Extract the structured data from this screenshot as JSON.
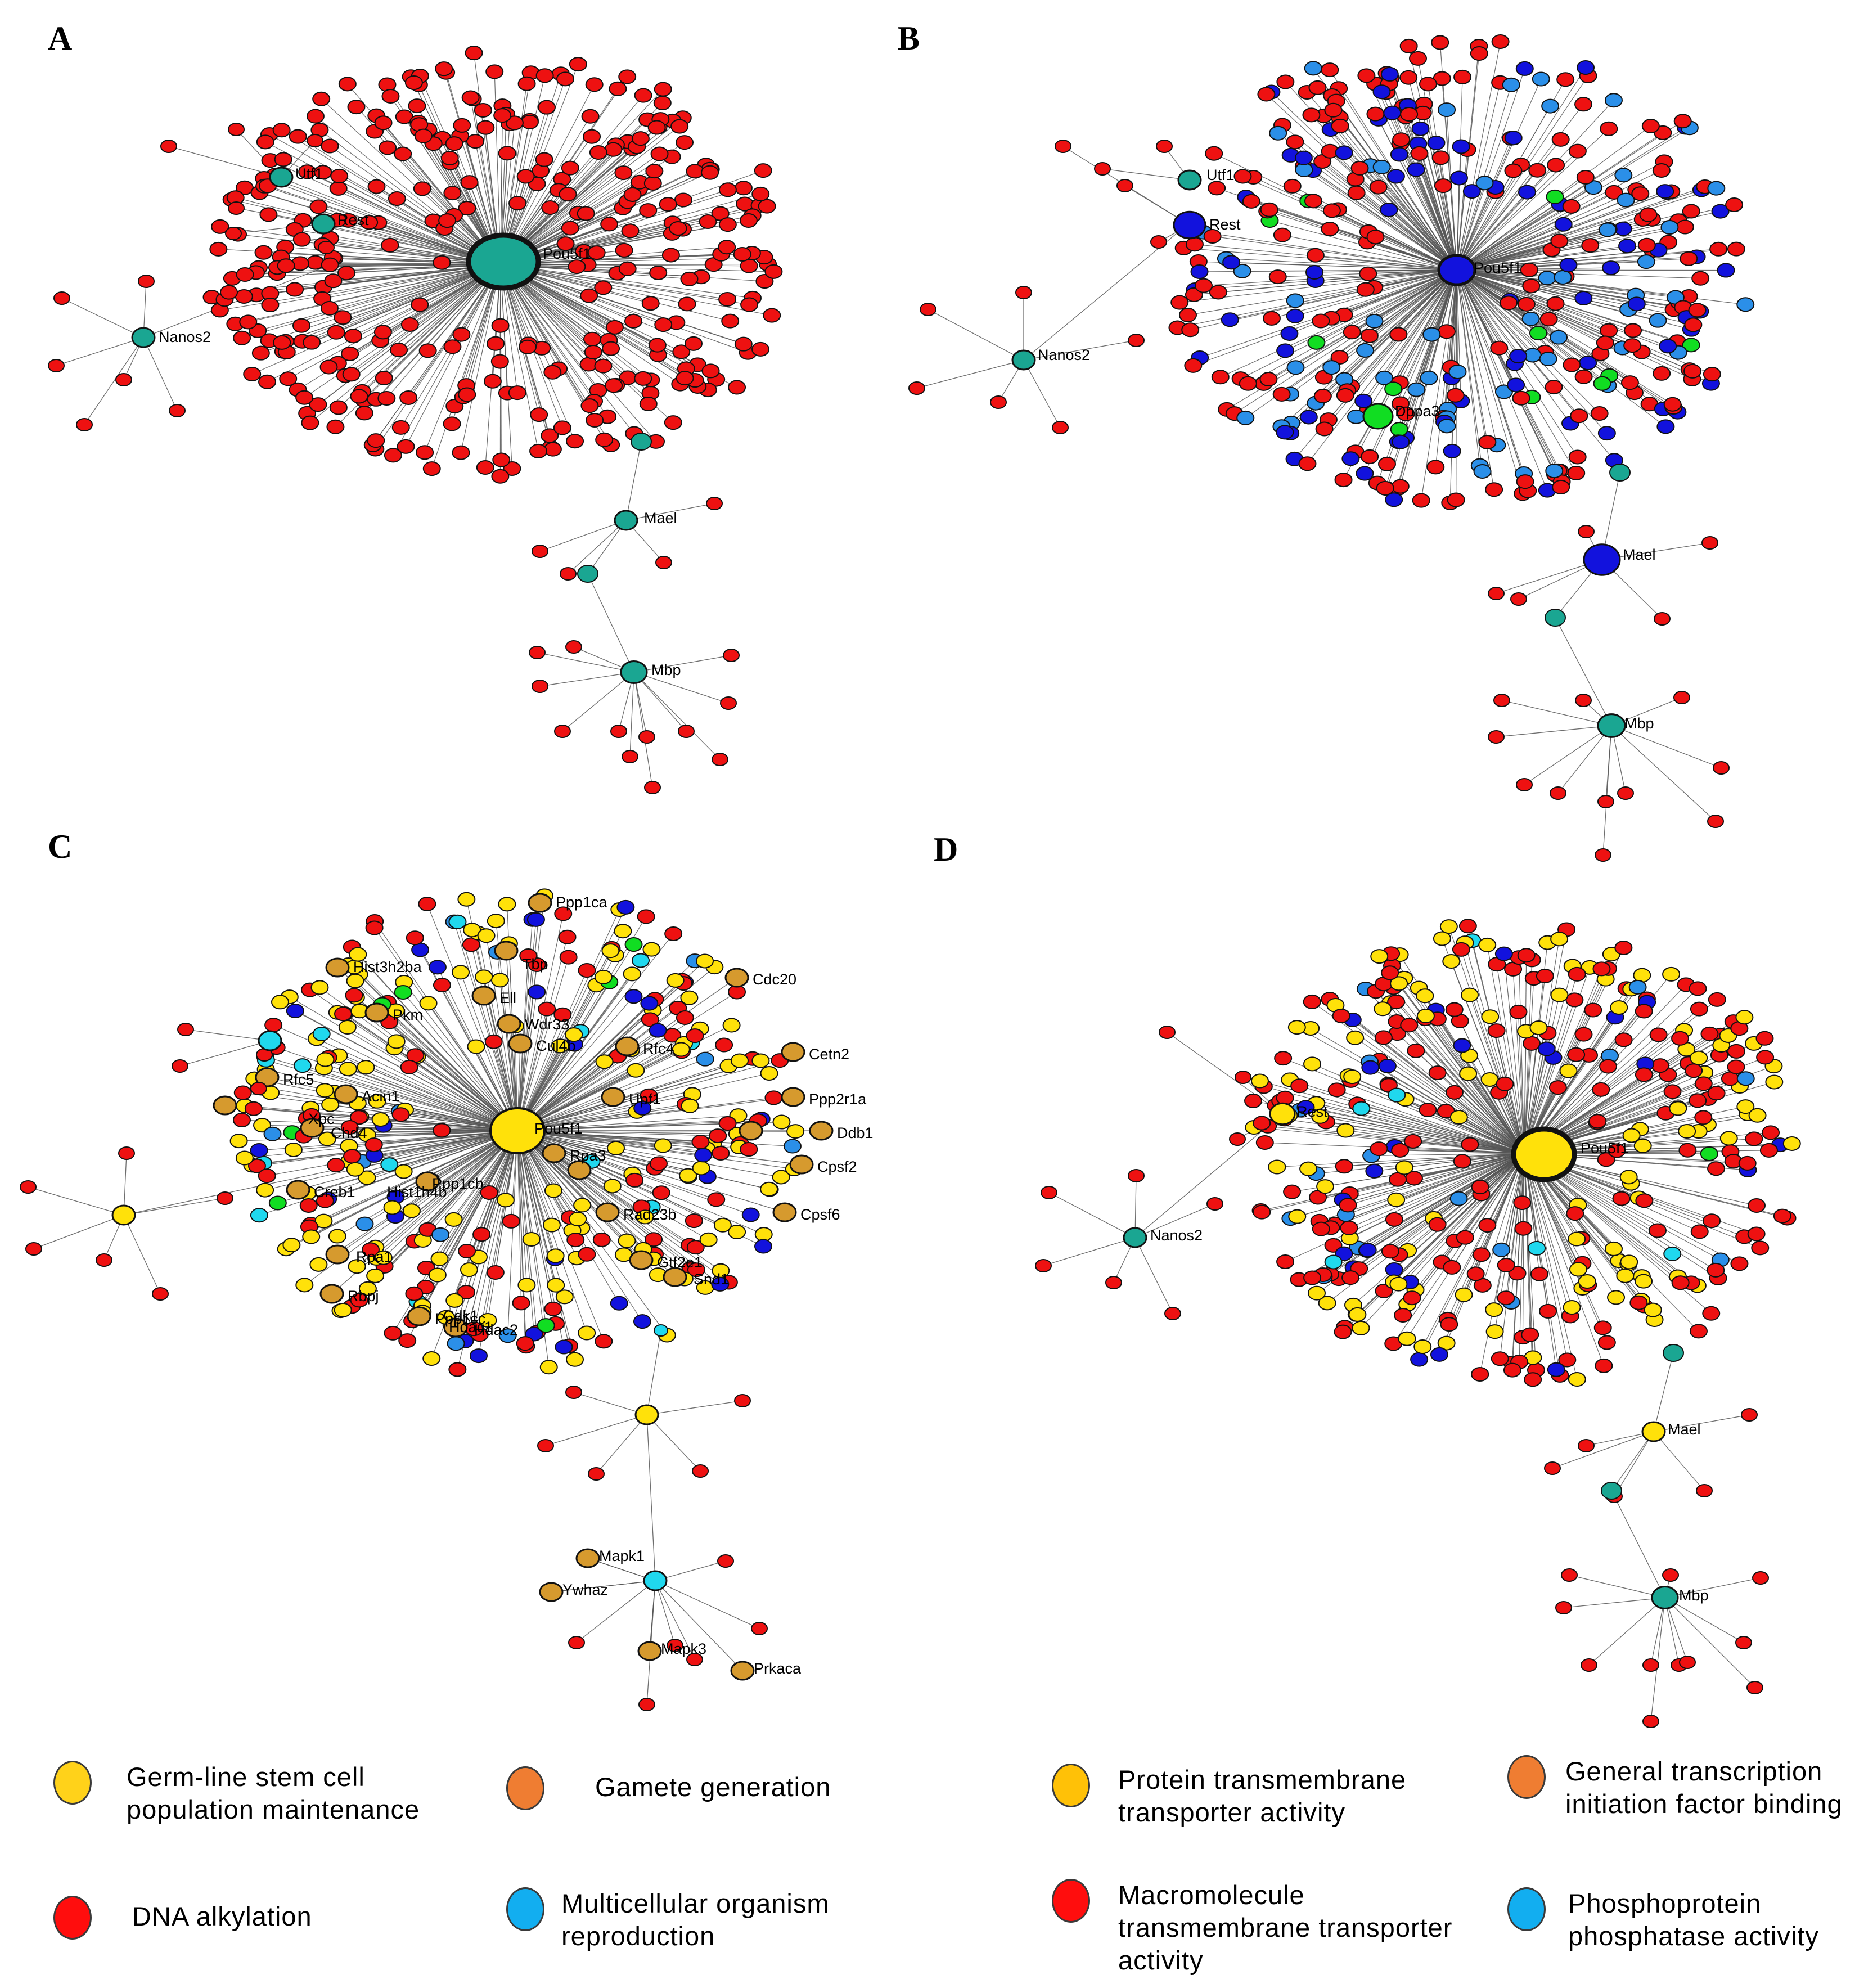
{
  "colors": {
    "red": "#ee1111",
    "teal": "#1aa692",
    "blue": "#1212dd",
    "lightblue": "#2b8fe8",
    "green": "#11dd22",
    "yellow": "#ffe10a",
    "orange": "#d69a2e",
    "cyan": "#20d8ee",
    "edge": "#555555"
  },
  "panels": [
    {
      "letter": "A",
      "main_hub": {
        "label": "Pou5f1",
        "color": "teal"
      },
      "hubs": [
        {
          "label": "Utf1",
          "color": "teal"
        },
        {
          "label": "Rest",
          "color": "teal"
        },
        {
          "label": "Nanos2",
          "color": "teal"
        },
        {
          "label": "Mael",
          "color": "teal"
        },
        {
          "label": "Mbp",
          "color": "teal"
        }
      ],
      "cloud_palette": {
        "red": 1.0
      }
    },
    {
      "letter": "B",
      "main_hub": {
        "label": "Pou5f1",
        "color": "blue"
      },
      "hubs": [
        {
          "label": "Utf1",
          "color": "teal"
        },
        {
          "label": "Rest",
          "color": "blue"
        },
        {
          "label": "Nanos2",
          "color": "teal"
        },
        {
          "label": "Mael",
          "color": "blue"
        },
        {
          "label": "Mbp",
          "color": "teal"
        },
        {
          "label": "Dppa3",
          "color": "green"
        }
      ],
      "cloud_palette": {
        "red": 0.58,
        "blue": 0.22,
        "lightblue": 0.17,
        "green": 0.03
      }
    },
    {
      "letter": "C",
      "main_hub": {
        "label": "Pou5f1",
        "color": "yellow"
      },
      "hubs": [
        {
          "label": "Mapk1",
          "color": "orange"
        },
        {
          "label": "Ywhaz",
          "color": "orange"
        },
        {
          "label": "Mapk3",
          "color": "orange"
        },
        {
          "label": "Prkaca",
          "color": "orange"
        }
      ],
      "labeled_genes": [
        "Ppp1ca",
        "Hist3h2ba",
        "Tbp",
        "Cdc20",
        "Pkm",
        "Ell",
        "Wdr33",
        "Cul4b",
        "Rfc4",
        "Cetn2",
        "Rfc5",
        "Acin1",
        "Xpc",
        "Chd4",
        "Upf1",
        "Ppp2r1a",
        "Ddb1",
        "Rpa3",
        "Cpsf2",
        "Creb1",
        "Hist1h4b",
        "Ppp1cb",
        "Rad23b",
        "Cpsf6",
        "Rpa1",
        "Gtf2e1",
        "Snd1",
        "Rbpj",
        "Ppp1cc",
        "Hdac2",
        "Cdk1",
        "Hdac1"
      ],
      "cloud_palette": {
        "red": 0.38,
        "yellow": 0.42,
        "blue": 0.09,
        "lightblue": 0.05,
        "cyan": 0.04,
        "green": 0.02
      }
    },
    {
      "letter": "D",
      "main_hub": {
        "label": "Pou5f1",
        "color": "yellow"
      },
      "hubs": [
        {
          "label": "Rest",
          "color": "yellow"
        },
        {
          "label": "Nanos2",
          "color": "teal"
        },
        {
          "label": "Mael",
          "color": "yellow"
        },
        {
          "label": "Mbp",
          "color": "teal"
        }
      ],
      "cloud_palette": {
        "red": 0.52,
        "yellow": 0.32,
        "blue": 0.07,
        "lightblue": 0.05,
        "cyan": 0.03,
        "green": 0.01
      }
    }
  ],
  "legend": {
    "left": [
      {
        "label": "Germ-line stem cell population maintenance",
        "color": "#ffd21a"
      },
      {
        "label": "Gamete generation",
        "color": "#ef7d32"
      },
      {
        "label": "DNA alkylation",
        "color": "#ff0d0d"
      },
      {
        "label": "Multicellular organism reproduction",
        "color": "#12aef0"
      }
    ],
    "right": [
      {
        "label": "Protein transmembrane transporter activity",
        "color": "#ffc107"
      },
      {
        "label": "General transcription initiation factor binding",
        "color": "#ef7d32"
      },
      {
        "label": "Macromolecule transmembrane transporter activity",
        "color": "#ff0d0d"
      },
      {
        "label": "Phosphoprotein phosphatase activity",
        "color": "#12aef0"
      }
    ]
  }
}
